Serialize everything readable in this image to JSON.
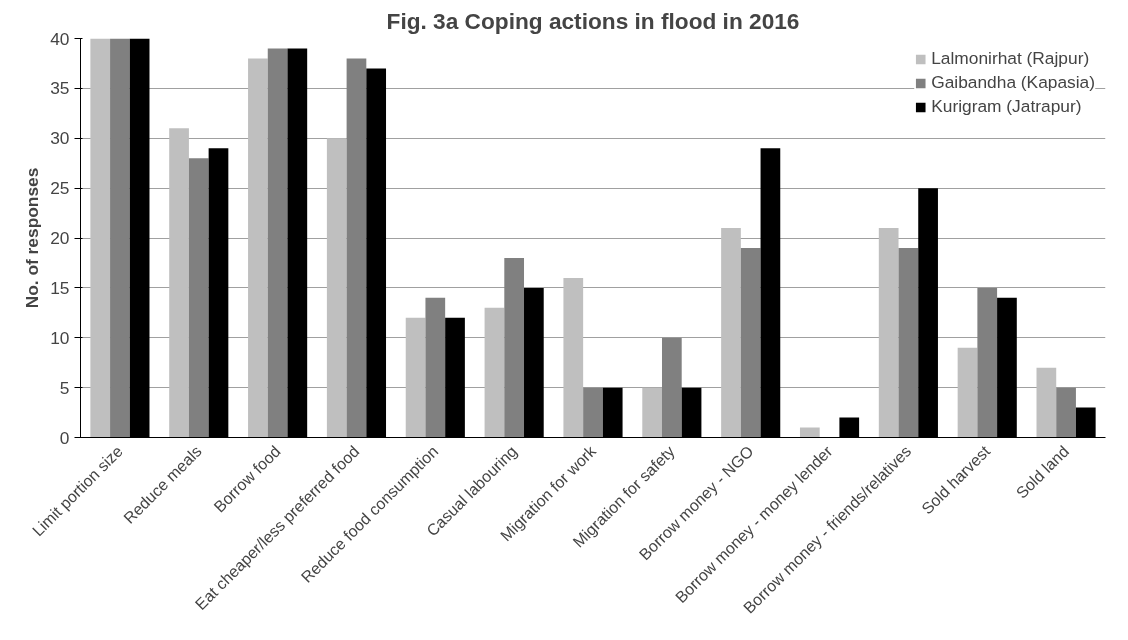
{
  "chart_data": {
    "type": "bar",
    "title": "Fig. 3a Coping actions in flood in 2016",
    "ylabel": "No. of responses",
    "categories": [
      "Limit portion size",
      "Reduce meals",
      "Borrow food",
      "Eat cheaper/less preferred food",
      "Reduce food consumption",
      "Casual labouring",
      "Migration for work",
      "Migration for safety",
      "Borrow money - NGO",
      "Borrow money - money lender",
      "Borrow money - friends/relatives",
      "Sold harvest",
      "Sold land"
    ],
    "series": [
      {
        "name": "Lalmonirhat (Rajpur)",
        "color": "#bfbfbf",
        "values": [
          40,
          31,
          38,
          30,
          12,
          13,
          16,
          5,
          21,
          1,
          21,
          9,
          7
        ]
      },
      {
        "name": "Gaibandha (Kapasia)",
        "color": "#808080",
        "values": [
          40,
          28,
          39,
          38,
          14,
          18,
          5,
          10,
          19,
          0,
          19,
          15,
          5
        ]
      },
      {
        "name": "Kurigram (Jatrapur)",
        "color": "#000000",
        "values": [
          40,
          29,
          39,
          37,
          12,
          15,
          5,
          5,
          29,
          2,
          25,
          14,
          3
        ]
      }
    ],
    "ylim": [
      0,
      40
    ],
    "yticks": [
      0,
      5,
      10,
      15,
      20,
      25,
      30,
      35,
      40
    ],
    "grid": "y",
    "legend": "top right"
  }
}
